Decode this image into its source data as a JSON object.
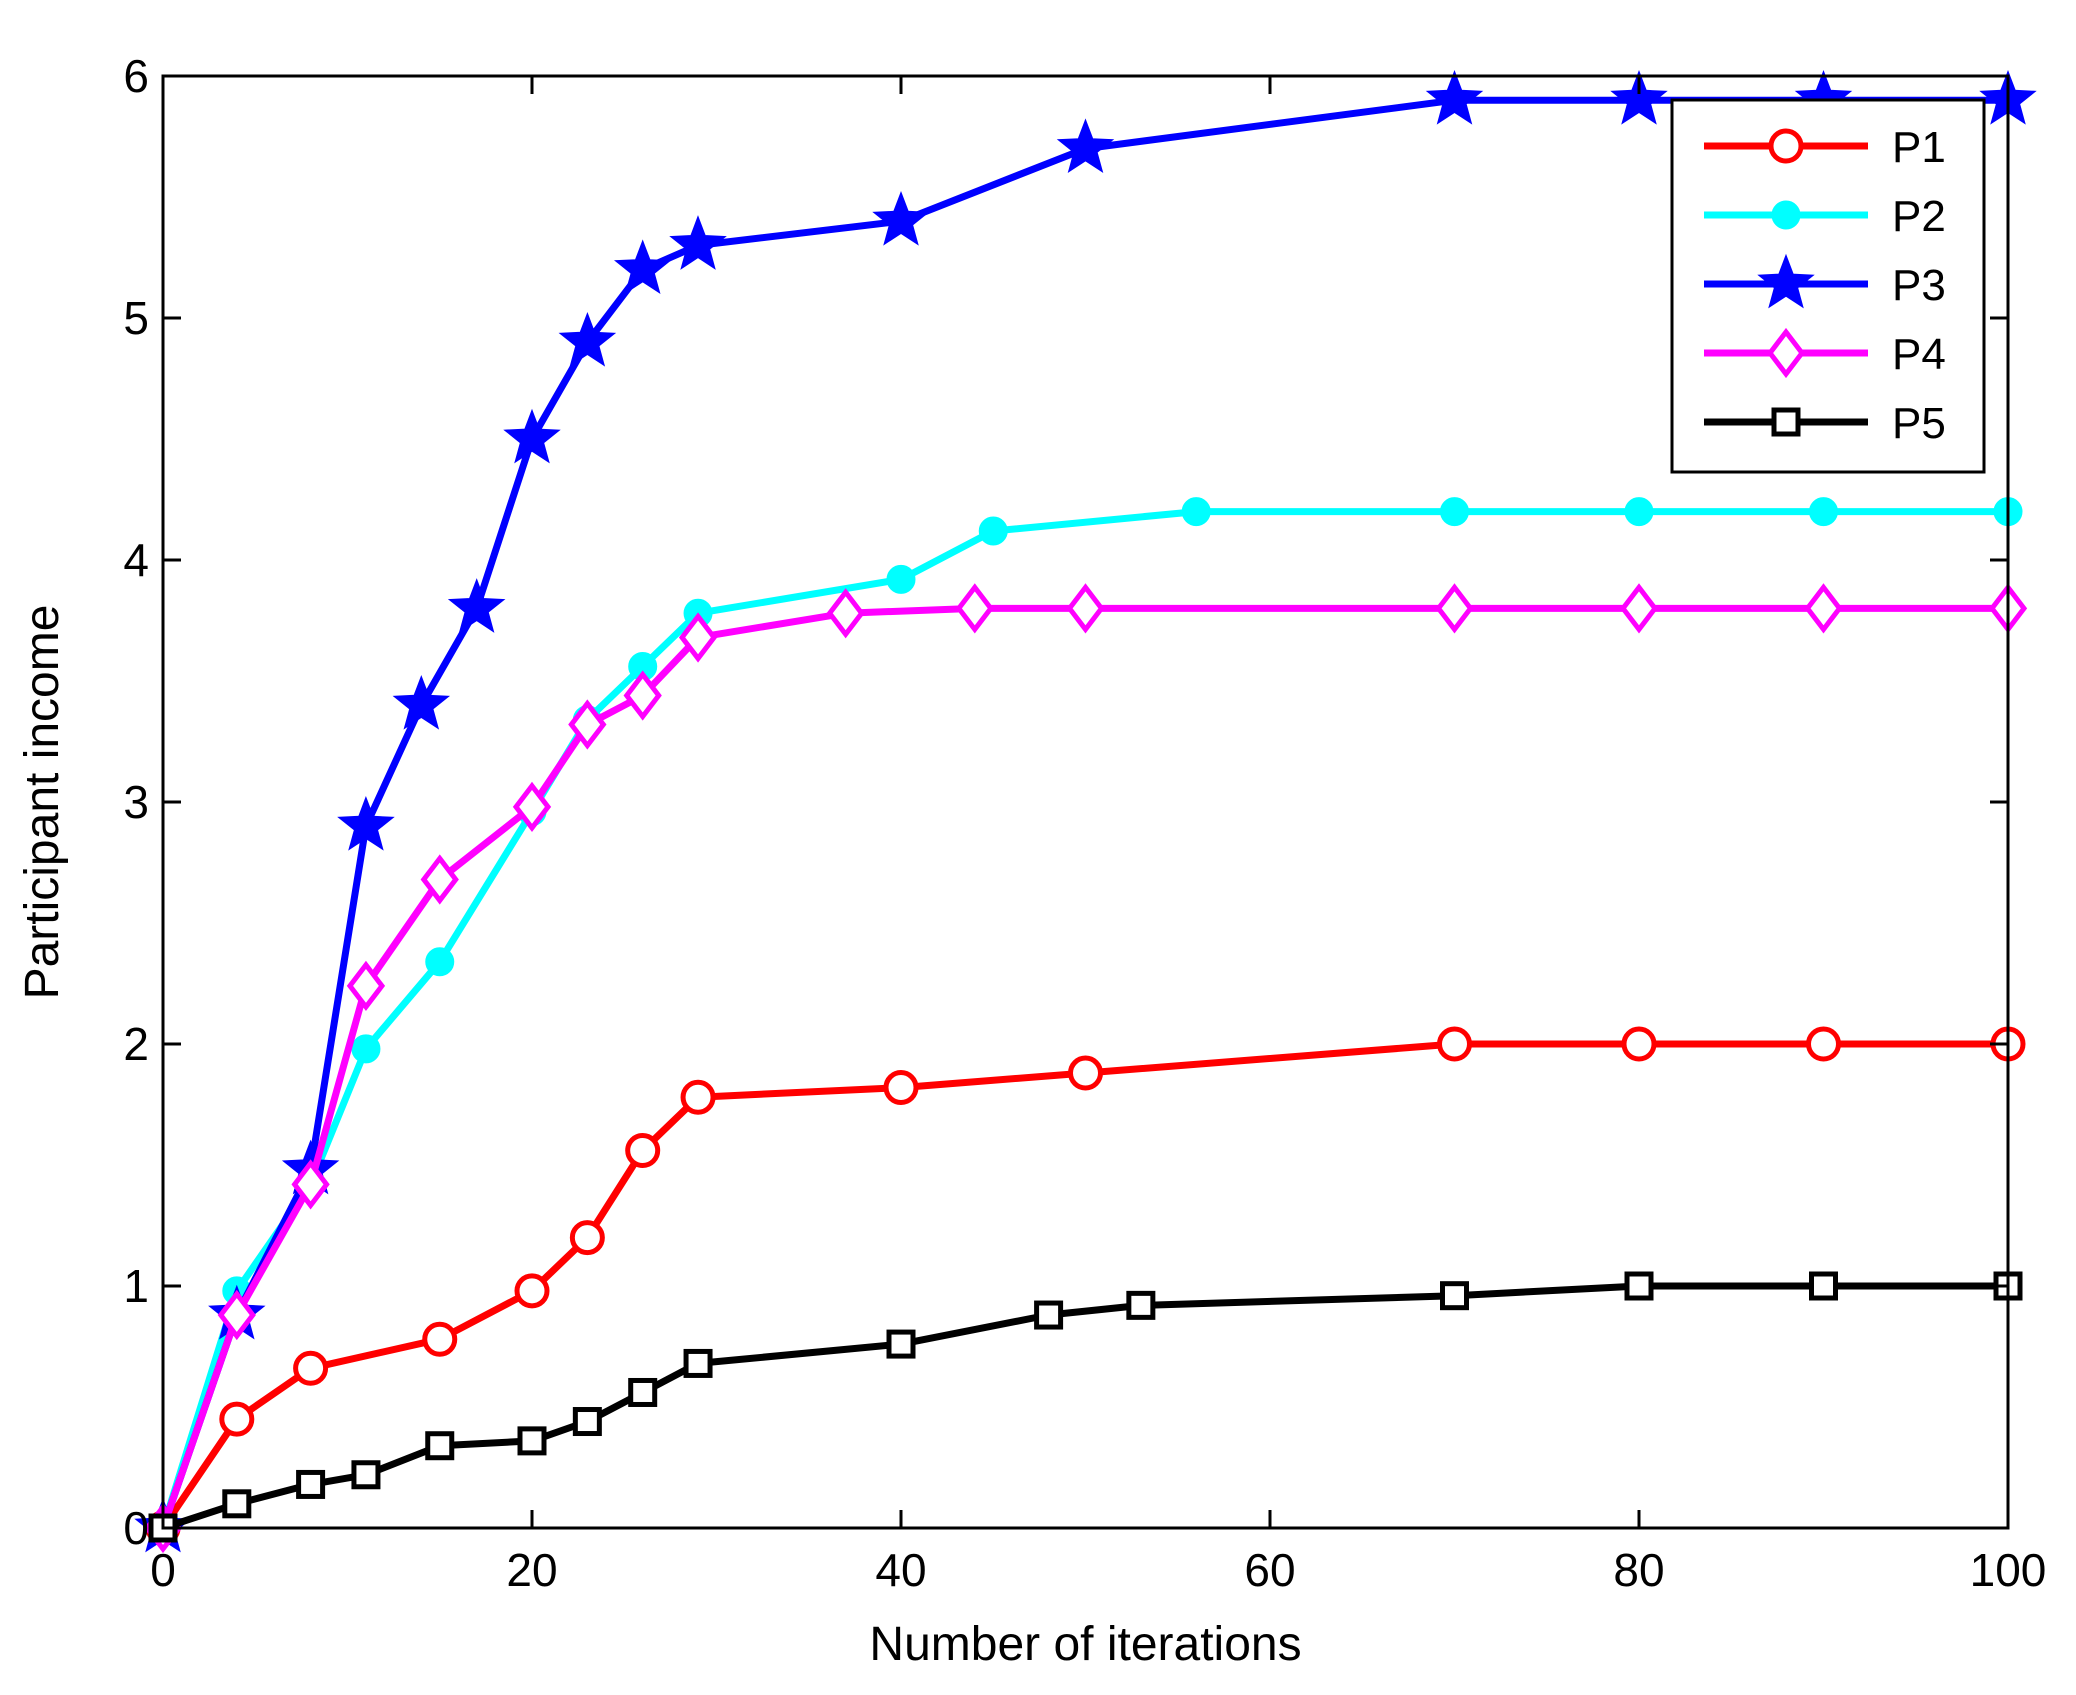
{
  "chart_data": {
    "type": "line",
    "title": "",
    "xlabel": "Number of iterations",
    "ylabel": "Participant income",
    "xlim": [
      0,
      100
    ],
    "ylim": [
      0,
      6
    ],
    "xticks": [
      "0",
      "20",
      "40",
      "60",
      "80",
      "100"
    ],
    "yticks": [
      "0",
      "1",
      "2",
      "3",
      "4",
      "5",
      "6"
    ],
    "grid": false,
    "legend_position": "top-right",
    "series": [
      {
        "name": "P1",
        "color": "#ff0000",
        "marker": "circle-open",
        "x": [
          0,
          4,
          8,
          15,
          20,
          23,
          26,
          29,
          40,
          50,
          70,
          80,
          90,
          100
        ],
        "y": [
          0,
          0.45,
          0.66,
          0.78,
          0.98,
          1.2,
          1.56,
          1.78,
          1.82,
          1.88,
          2.0,
          2.0,
          2.0,
          2.0
        ]
      },
      {
        "name": "P2",
        "color": "#00ffff",
        "marker": "circle-filled",
        "x": [
          0,
          4,
          8,
          11,
          15,
          20,
          23,
          26,
          29,
          40,
          45,
          56,
          70,
          80,
          90,
          100
        ],
        "y": [
          0,
          0.98,
          1.42,
          1.98,
          2.34,
          2.96,
          3.34,
          3.56,
          3.78,
          3.92,
          4.12,
          4.2,
          4.2,
          4.2,
          4.2,
          4.2
        ]
      },
      {
        "name": "P3",
        "color": "#0000ff",
        "marker": "star-filled",
        "x": [
          0,
          4,
          8,
          11,
          14,
          17,
          20,
          23,
          26,
          29,
          40,
          50,
          70,
          80,
          90,
          100
        ],
        "y": [
          0,
          0.88,
          1.48,
          2.9,
          3.4,
          3.8,
          4.5,
          4.9,
          5.2,
          5.3,
          5.4,
          5.7,
          5.9,
          5.9,
          5.9,
          5.9
        ]
      },
      {
        "name": "P4",
        "color": "#ff00ff",
        "marker": "diamond-open",
        "x": [
          0,
          4,
          8,
          11,
          15,
          20,
          23,
          26,
          29,
          37,
          44,
          50,
          70,
          80,
          90,
          100
        ],
        "y": [
          0,
          0.88,
          1.42,
          2.24,
          2.68,
          2.98,
          3.32,
          3.44,
          3.68,
          3.78,
          3.8,
          3.8,
          3.8,
          3.8,
          3.8,
          3.8
        ]
      },
      {
        "name": "P5",
        "color": "#000000",
        "marker": "square-open",
        "x": [
          0,
          4,
          8,
          11,
          15,
          20,
          23,
          26,
          29,
          40,
          48,
          53,
          70,
          80,
          90,
          100
        ],
        "y": [
          0,
          0.1,
          0.18,
          0.22,
          0.34,
          0.36,
          0.44,
          0.56,
          0.68,
          0.76,
          0.88,
          0.92,
          0.96,
          1.0,
          1.0,
          1.0
        ]
      }
    ]
  }
}
